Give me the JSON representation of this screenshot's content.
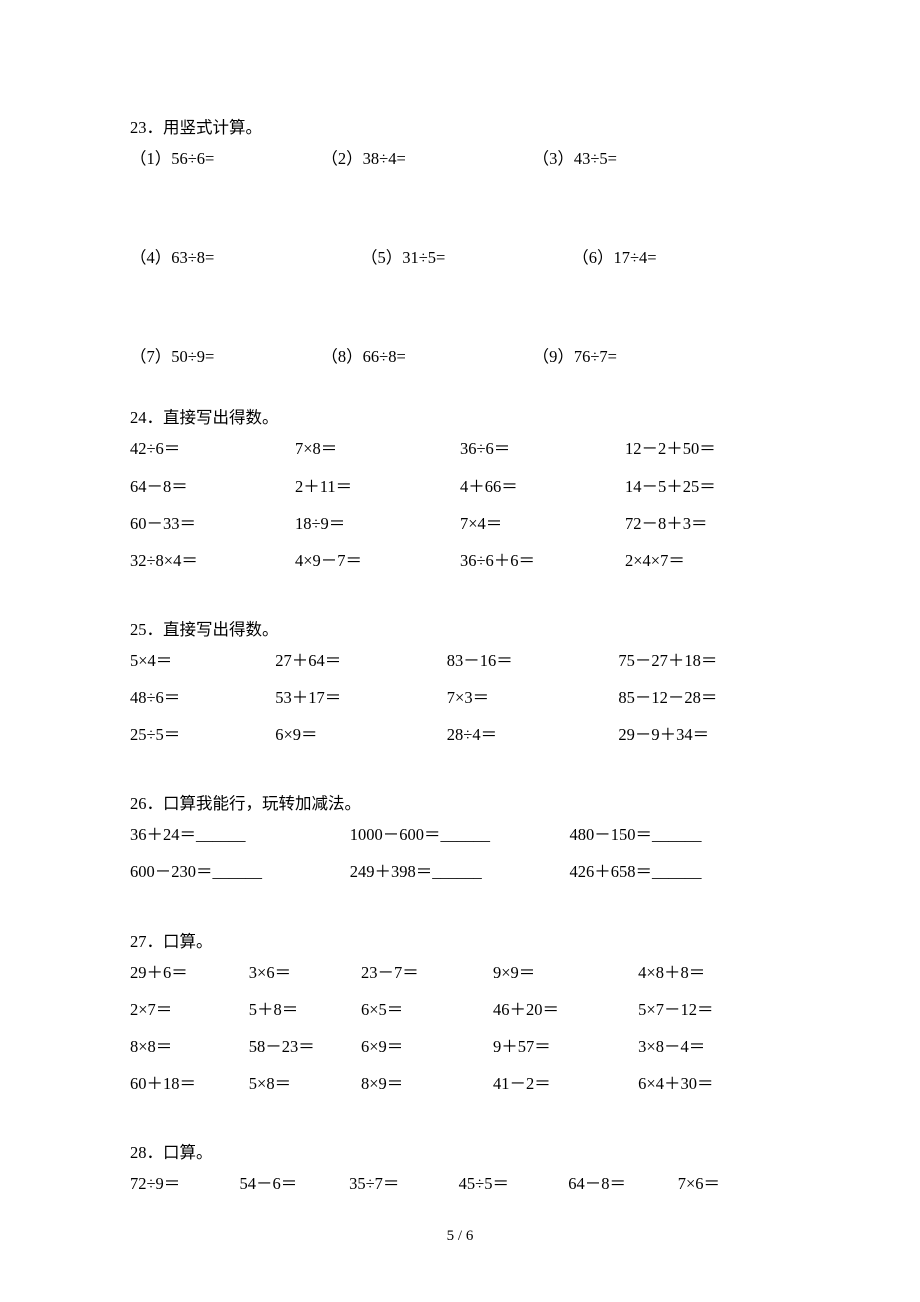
{
  "page": {
    "footer": "5 / 6"
  },
  "style": {
    "font_family": "SimSun",
    "font_size_pt": 12,
    "text_color": "#000000",
    "background_color": "#ffffff"
  },
  "q23": {
    "title": "23．用竖式计算。",
    "rows": [
      [
        "（1）56÷6=",
        "（2）38÷4=",
        "（3）43÷5="
      ],
      [
        "（4）63÷8=",
        "（5）31÷5=",
        "（6）17÷4="
      ],
      [
        "（7）50÷9=",
        "（8）66÷8=",
        "（9）76÷7="
      ]
    ]
  },
  "q24": {
    "title": "24．直接写出得数。",
    "rows": [
      [
        "42÷6＝",
        "7×8＝",
        "36÷6＝",
        "12－2＋50＝"
      ],
      [
        "64－8＝",
        "2＋11＝",
        "4＋66＝",
        "14－5＋25＝"
      ],
      [
        "60－33＝",
        "18÷9＝",
        "7×4＝",
        "72－8＋3＝"
      ],
      [
        "32÷8×4＝",
        "4×9－7＝",
        "36÷6＋6＝",
        "2×4×7＝"
      ]
    ]
  },
  "q25": {
    "title": "25．直接写出得数。",
    "rows": [
      [
        "5×4＝",
        "27＋64＝",
        "83－16＝",
        "75－27＋18＝"
      ],
      [
        "48÷6＝",
        "53＋17＝",
        "7×3＝",
        "85－12－28＝"
      ],
      [
        "25÷5＝",
        "6×9＝",
        "28÷4＝",
        "29－9＋34＝"
      ]
    ]
  },
  "q26": {
    "title": "26．口算我能行，玩转加减法。",
    "rows": [
      [
        "36＋24＝______",
        "1000－600＝______",
        "480－150＝______"
      ],
      [
        "600－230＝______",
        "249＋398＝______",
        "426＋658＝______"
      ]
    ]
  },
  "q27": {
    "title": "27．口算。",
    "rows": [
      [
        "29＋6＝",
        "3×6＝",
        "23－7＝",
        "9×9＝",
        "4×8＋8＝"
      ],
      [
        "2×7＝",
        "5＋8＝",
        "6×5＝",
        "46＋20＝",
        "5×7－12＝"
      ],
      [
        "8×8＝",
        "58－23＝",
        "6×9＝",
        "9＋57＝",
        "3×8－4＝"
      ],
      [
        "60＋18＝",
        "5×8＝",
        "8×9＝",
        "41－2＝",
        "6×4＋30＝"
      ]
    ]
  },
  "q28": {
    "title": "28．口算。",
    "rows": [
      [
        "72÷9＝",
        "54－6＝",
        "35÷7＝",
        "45÷5＝",
        "64－8＝",
        "7×6＝"
      ]
    ]
  }
}
